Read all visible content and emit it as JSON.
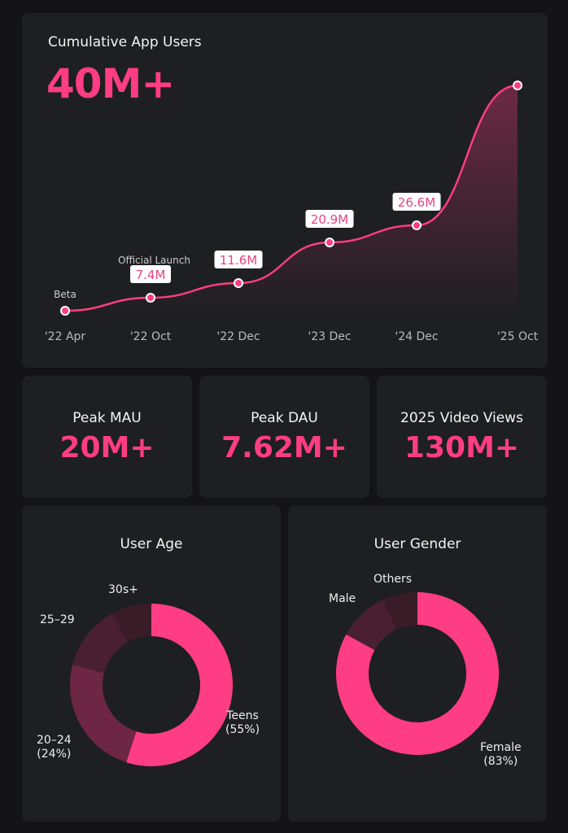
{
  "colors": {
    "accent": "#ff3d84",
    "background": "#141416",
    "card": "#1e1f21"
  },
  "main": {
    "title": "Cumulative App Users",
    "headline": "40M+"
  },
  "stats": [
    {
      "label": "Peak MAU",
      "value": "20M+"
    },
    {
      "label": "Peak DAU",
      "value": "7.62M+"
    },
    {
      "label": "2025 Video Views",
      "value": "130M+"
    }
  ],
  "chart_data": [
    {
      "type": "area",
      "title": "Cumulative App Users",
      "categories": [
        "'22 Apr",
        "'22 Oct",
        "'22 Dec",
        "'23 Dec",
        "'24 Dec",
        "'25 Oct"
      ],
      "values": [
        null,
        7.4,
        11.6,
        20.9,
        26.6,
        40
      ],
      "unit": "M",
      "data_labels": [
        "",
        "7.4M",
        "11.6M",
        "20.9M",
        "26.6M",
        ""
      ],
      "annotations": [
        {
          "category": "'22 Apr",
          "text": "Beta"
        },
        {
          "category": "'22 Oct",
          "text": "Official Launch"
        }
      ],
      "grid": false
    },
    {
      "type": "pie",
      "title": "User Age",
      "donut": true,
      "slices": [
        {
          "label": "Teens",
          "value": 55,
          "display": "(55%)",
          "color": "#ff3d84"
        },
        {
          "label": "20–24",
          "value": 24,
          "display": "(24%)",
          "color": "#6e2645"
        },
        {
          "label": "25–29",
          "value": 13,
          "display": "",
          "color": "#4a1f31"
        },
        {
          "label": "30s+",
          "value": 8,
          "display": "",
          "color": "#3a1c27"
        }
      ]
    },
    {
      "type": "pie",
      "title": "User Gender",
      "donut": true,
      "slices": [
        {
          "label": "Female",
          "value": 83,
          "display": "(83%)",
          "color": "#ff3d84"
        },
        {
          "label": "Male",
          "value": 10,
          "display": "",
          "color": "#4a1f31"
        },
        {
          "label": "Others",
          "value": 7,
          "display": "",
          "color": "#3a1c27"
        }
      ]
    }
  ]
}
